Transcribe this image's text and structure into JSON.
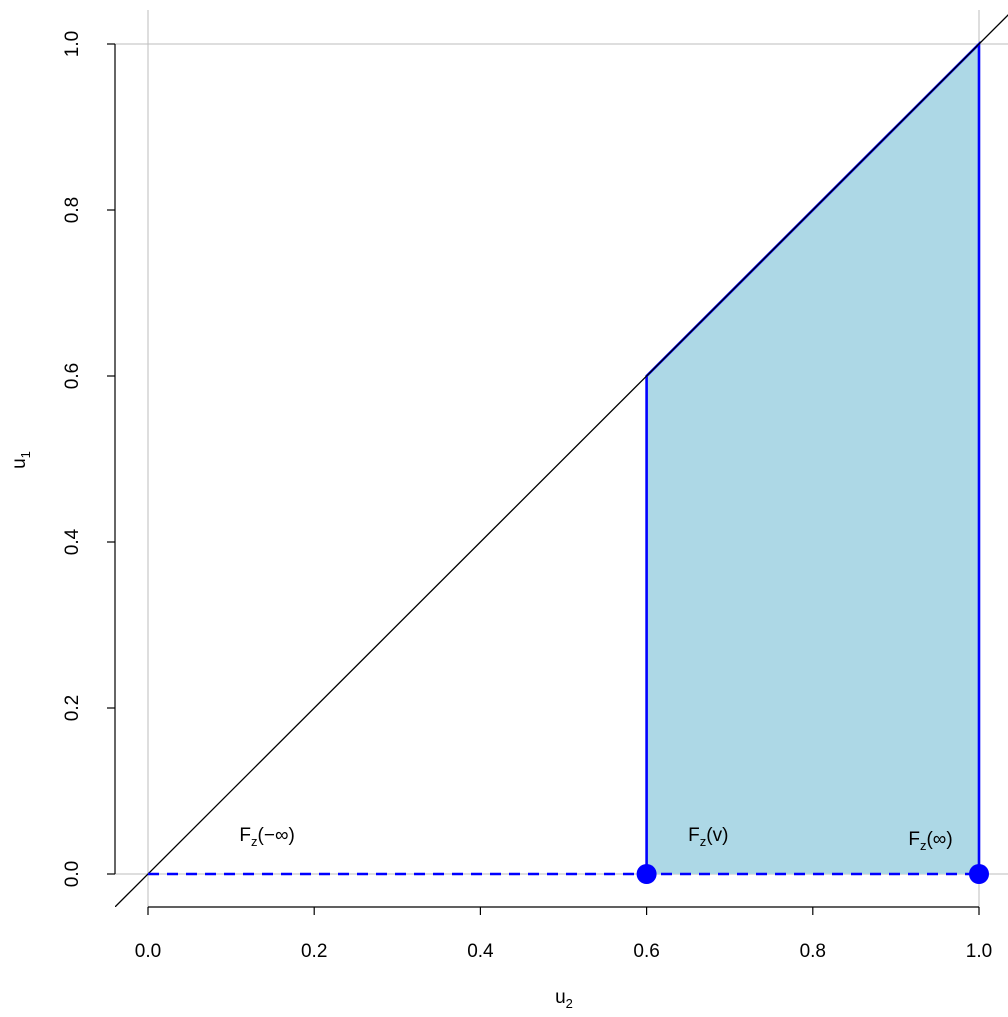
{
  "chart_data": {
    "type": "area",
    "title": "",
    "xlabel": "u",
    "xlabel_sub": "2",
    "ylabel": "u",
    "ylabel_sub": "1",
    "xlim": [
      0,
      1
    ],
    "ylim": [
      0,
      1
    ],
    "x_ticks": [
      "0.0",
      "0.2",
      "0.4",
      "0.6",
      "0.8",
      "1.0"
    ],
    "y_ticks": [
      "0.0",
      "0.2",
      "0.4",
      "0.6",
      "0.8",
      "1.0"
    ],
    "reference_lines": {
      "vertical_x": [
        0,
        1
      ],
      "horizontal_y": [
        0,
        1
      ],
      "color": "#bebebe"
    },
    "diagonal": {
      "from": [
        -0.1,
        -0.1
      ],
      "to": [
        1.1,
        1.1
      ],
      "color": "#000000"
    },
    "shaded_region": {
      "vertices": [
        [
          0.6,
          0
        ],
        [
          0.6,
          0.6
        ],
        [
          1.0,
          1.0
        ],
        [
          1.0,
          0
        ]
      ],
      "fill": "#add8e6",
      "stroke": "#0000ff"
    },
    "dashed_segment": {
      "from": [
        0,
        0
      ],
      "to": [
        1,
        0
      ],
      "color": "#0000ff"
    },
    "points": [
      {
        "x": 0.6,
        "y": 0
      },
      {
        "x": 1.0,
        "y": 0
      }
    ],
    "point_color": "#0000ff",
    "annotations": [
      {
        "x": 0.11,
        "y": 0.04,
        "base": "F",
        "sub": "z",
        "rest": "(−∞)"
      },
      {
        "x": 0.65,
        "y": 0.04,
        "base": "F",
        "sub": "z",
        "rest": "(v)"
      },
      {
        "x": 0.915,
        "y": 0.035,
        "base": "F",
        "sub": "z",
        "rest": "(∞)"
      }
    ]
  }
}
